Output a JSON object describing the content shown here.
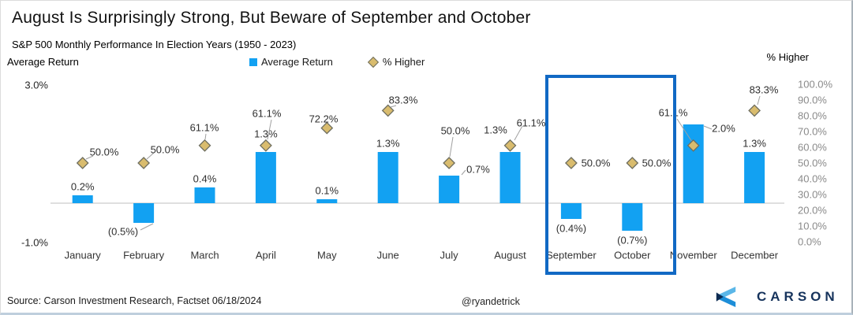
{
  "header": {
    "title": "August Is Surprisingly Strong, But Beware of September and October",
    "subtitle": "S&P 500 Monthly Performance In Election Years (1950 - 2023)"
  },
  "footer": {
    "source": "Source: Carson Investment Research, Factset 06/18/2024",
    "handle": "@ryandetrick",
    "brand": "CARSON"
  },
  "chart_data": {
    "type": "bar",
    "title": "S&P 500 Monthly Performance In Election Years (1950 - 2023)",
    "categories": [
      "January",
      "February",
      "March",
      "April",
      "May",
      "June",
      "July",
      "August",
      "September",
      "October",
      "November",
      "December"
    ],
    "series": [
      {
        "name": "Average Return",
        "type": "bar",
        "axis": "left",
        "color": "#12A1F2",
        "values": [
          0.2,
          -0.5,
          0.4,
          1.3,
          0.1,
          1.3,
          0.7,
          1.3,
          -0.4,
          -0.7,
          2.0,
          1.3
        ],
        "labels": [
          "0.2%",
          "(0.5%)",
          "0.4%",
          "1.3%",
          "0.1%",
          "1.3%",
          "0.7%",
          "1.3%",
          "(0.4%)",
          "(0.7%)",
          "2.0%",
          "1.3%"
        ]
      },
      {
        "name": "% Higher",
        "type": "scatter",
        "marker": "diamond",
        "axis": "right",
        "color": "#D9BC6E",
        "marker_stroke": "#6e6e5f",
        "values": [
          50.0,
          50.0,
          61.1,
          61.1,
          72.2,
          83.3,
          50.0,
          61.1,
          50.0,
          50.0,
          61.1,
          83.3
        ],
        "labels": [
          "50.0%",
          "50.0%",
          "61.1%",
          "61.1%",
          "72.2%",
          "83.3%",
          "50.0%",
          "61.1%",
          "50.0%",
          "50.0%",
          "61.1%",
          "83.3%"
        ]
      }
    ],
    "left_axis": {
      "title": "Average Return",
      "min": -1.0,
      "max": 3.0,
      "tick_labels": [
        "3.0%",
        "-1.0%"
      ]
    },
    "right_axis": {
      "title": "% Higher",
      "min": 0,
      "max": 100,
      "tick_labels": [
        "100.0%",
        "90.0%",
        "80.0%",
        "70.0%",
        "60.0%",
        "50.0%",
        "40.0%",
        "30.0%",
        "20.0%",
        "10.0%",
        "0.0%"
      ]
    },
    "grid": "zero-line-only",
    "legend_position": "top-center",
    "highlight": {
      "categories": [
        "September",
        "October"
      ],
      "color": "#1169C4"
    }
  }
}
